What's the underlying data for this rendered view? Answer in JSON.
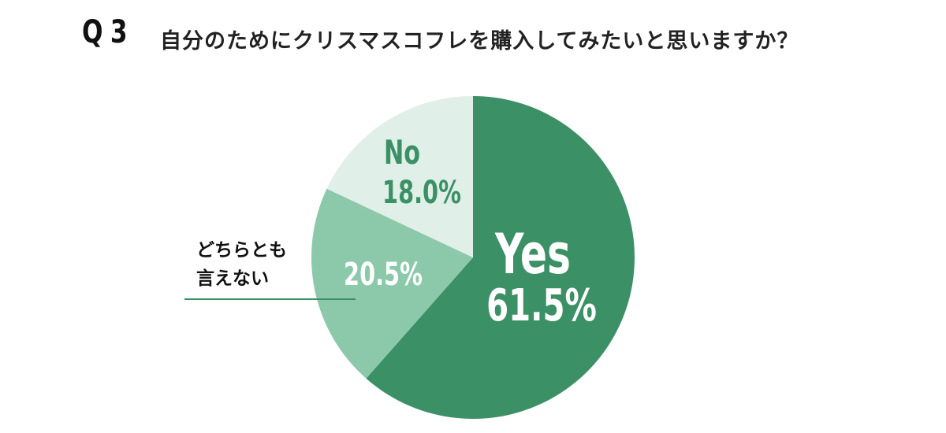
{
  "header": {
    "q_number": "Q3",
    "question": "自分のためにクリスマスコフレを購入してみたいと思いますか？"
  },
  "colors": {
    "yes": "#3b9066",
    "neither": "#8cc9ab",
    "no": "#e0efe7",
    "label_dark": "#ffffff",
    "label_light": "#3b9066",
    "leader_line": "#3b9066"
  },
  "chart_data": {
    "type": "pie",
    "title": "自分のためにクリスマスコフレを購入してみたいと思いますか？",
    "unit": "%",
    "start": "12 o'clock",
    "direction": "clockwise",
    "slices": [
      {
        "key": "yes",
        "label": "Yes",
        "value": 61.5,
        "value_text": "61.5%"
      },
      {
        "key": "neither",
        "label_lines": [
          "どちらとも",
          "言えない"
        ],
        "value": 20.5,
        "value_text": "20.5%"
      },
      {
        "key": "no",
        "label": "No",
        "value": 18.0,
        "value_text": "18.0%"
      }
    ]
  }
}
